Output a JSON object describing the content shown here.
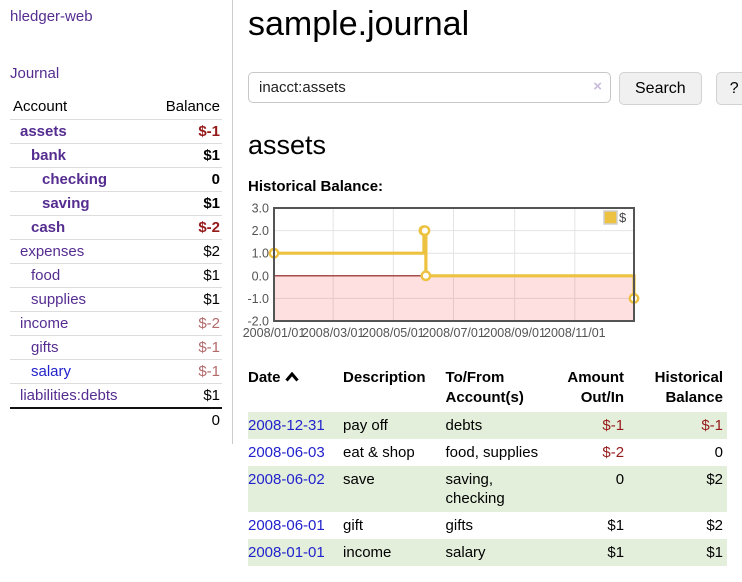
{
  "colors": {
    "link_purple": "#552d90",
    "link_blue": "#2222cc",
    "negative_strong": "#961919",
    "negative_soft": "#b36a6a",
    "row_green": "#e3efdb",
    "chart_line": "#edc240",
    "chart_zero_line": "#8b1a1a",
    "chart_negative_fill": "rgba(255,0,0,0.12)"
  },
  "sidebar": {
    "app_title": "hledger-web",
    "journal_link": "Journal",
    "accounts_table": {
      "account_header": "Account",
      "balance_header": "Balance",
      "rows": [
        {
          "name": "assets",
          "depth": 0,
          "bold": true,
          "link_color": "purple",
          "balance": "$-1",
          "balance_style": "neg-strong"
        },
        {
          "name": "bank",
          "depth": 1,
          "bold": true,
          "link_color": "purple",
          "balance": "$1",
          "balance_style": "normal"
        },
        {
          "name": "checking",
          "depth": 2,
          "bold": true,
          "link_color": "purple",
          "balance": "0",
          "balance_style": "normal"
        },
        {
          "name": "saving",
          "depth": 2,
          "bold": true,
          "link_color": "purple",
          "balance": "$1",
          "balance_style": "normal"
        },
        {
          "name": "cash",
          "depth": 1,
          "bold": true,
          "link_color": "purple",
          "balance": "$-2",
          "balance_style": "neg-strong"
        },
        {
          "name": "expenses",
          "depth": 0,
          "bold": false,
          "link_color": "purple",
          "balance": "$2",
          "balance_style": "normal"
        },
        {
          "name": "food",
          "depth": 1,
          "bold": false,
          "link_color": "purple",
          "balance": "$1",
          "balance_style": "normal"
        },
        {
          "name": "supplies",
          "depth": 1,
          "bold": false,
          "link_color": "purple",
          "balance": "$1",
          "balance_style": "normal"
        },
        {
          "name": "income",
          "depth": 0,
          "bold": false,
          "link_color": "purple",
          "balance": "$-2",
          "balance_style": "neg-soft"
        },
        {
          "name": "gifts",
          "depth": 1,
          "bold": false,
          "link_color": "purple",
          "balance": "$-1",
          "balance_style": "neg-soft"
        },
        {
          "name": "salary",
          "depth": 1,
          "bold": false,
          "link_color": "blue",
          "balance": "$-1",
          "balance_style": "neg-soft"
        },
        {
          "name": "liabilities:debts",
          "depth": 0,
          "bold": false,
          "link_color": "purple",
          "balance": "$1",
          "balance_style": "normal"
        }
      ],
      "total": "0"
    }
  },
  "header": {
    "title": "sample.journal"
  },
  "search": {
    "value": "inacct:assets",
    "clear_icon": "×",
    "search_label": "Search",
    "help_label": "?"
  },
  "account_page": {
    "heading": "assets",
    "chart_label": "Historical Balance:"
  },
  "chart_data": {
    "type": "line",
    "step": true,
    "title": "Historical Balance",
    "xlim": [
      "2008-01-01",
      "2008-12-31"
    ],
    "ylim": [
      -2,
      3
    ],
    "yticks": [
      {
        "v": 3,
        "label": "3.0"
      },
      {
        "v": 2,
        "label": "2.0"
      },
      {
        "v": 1,
        "label": "1.0"
      },
      {
        "v": 0,
        "label": "0.0"
      },
      {
        "v": -1,
        "label": "-1.0"
      },
      {
        "v": -2,
        "label": "-2.0"
      }
    ],
    "xticks": [
      {
        "date": "2008-01-01",
        "label": "2008/01/01"
      },
      {
        "date": "2008-03-01",
        "label": "2008/03/01"
      },
      {
        "date": "2008-05-01",
        "label": "2008/05/01"
      },
      {
        "date": "2008-07-01",
        "label": "2008/07/01"
      },
      {
        "date": "2008-09-01",
        "label": "2008/09/01"
      },
      {
        "date": "2008-11-01",
        "label": "2008/11/01"
      }
    ],
    "legend_position": "top-right",
    "grid": true,
    "series": [
      {
        "name": "$",
        "points": [
          [
            "2008-01-01",
            1
          ],
          [
            "2008-06-01",
            2
          ],
          [
            "2008-06-02",
            2
          ],
          [
            "2008-06-03",
            0
          ],
          [
            "2008-12-31",
            -1
          ]
        ]
      }
    ]
  },
  "register": {
    "headers": [
      {
        "line1": "Date",
        "line2": "",
        "align": "left",
        "sortable": true
      },
      {
        "line1": "Description",
        "line2": "",
        "align": "left"
      },
      {
        "line1": "To/From",
        "line2": "Account(s)",
        "align": "left"
      },
      {
        "line1": "Amount",
        "line2": "Out/In",
        "align": "right"
      },
      {
        "line1": "Historical",
        "line2": "Balance",
        "align": "right"
      }
    ],
    "rows": [
      {
        "date": "2008-12-31",
        "description": "pay off",
        "accounts": "debts",
        "amount": "$-1",
        "amount_style": "neg-strong",
        "balance": "$-1",
        "balance_style": "neg-strong",
        "green": true
      },
      {
        "date": "2008-06-03",
        "description": "eat & shop",
        "accounts": "food, supplies",
        "amount": "$-2",
        "amount_style": "neg-strong",
        "balance": "0",
        "balance_style": "normal",
        "green": false
      },
      {
        "date": "2008-06-02",
        "description": "save",
        "accounts": "saving, checking",
        "amount": "0",
        "amount_style": "normal",
        "balance": "$2",
        "balance_style": "normal",
        "green": true
      },
      {
        "date": "2008-06-01",
        "description": "gift",
        "accounts": "gifts",
        "amount": "$1",
        "amount_style": "normal",
        "balance": "$2",
        "balance_style": "normal",
        "green": false
      },
      {
        "date": "2008-01-01",
        "description": "income",
        "accounts": "salary",
        "amount": "$1",
        "amount_style": "normal",
        "balance": "$1",
        "balance_style": "normal",
        "green": true
      }
    ]
  }
}
